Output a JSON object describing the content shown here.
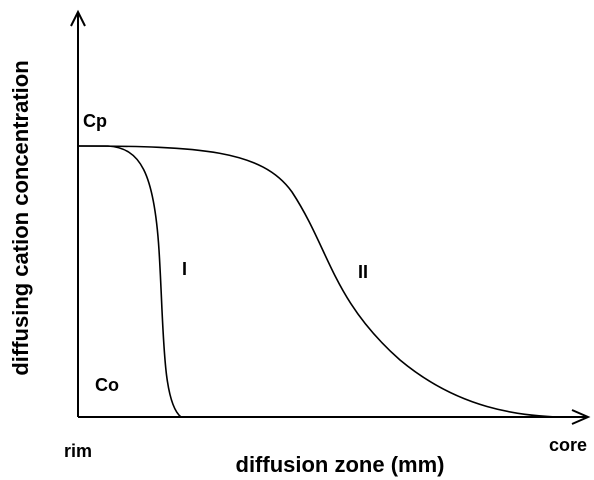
{
  "y_axis_label": "diffusing cation concentration",
  "x_axis_label": "diffusion zone (mm)",
  "x_start_label": "rim",
  "x_end_label": "core",
  "upper_level_label": "Cp",
  "lower_level_label": "Co",
  "curves": [
    {
      "label": "I"
    },
    {
      "label": "II"
    }
  ]
}
